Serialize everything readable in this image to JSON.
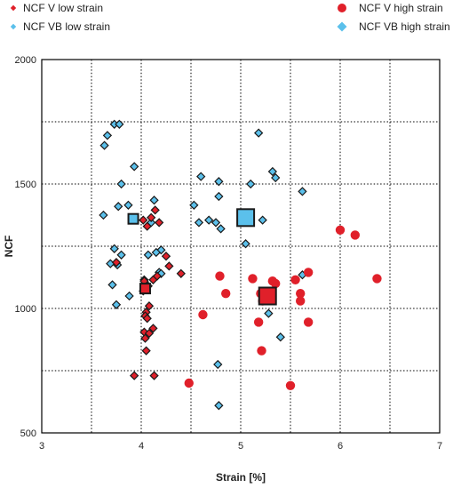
{
  "chart_data": {
    "type": "scatter",
    "xlabel": "Strain [%]",
    "ylabel": "NCF",
    "xlim": [
      3,
      7
    ],
    "ylim": [
      500,
      2000
    ],
    "xticks": [
      3,
      4,
      5,
      6,
      7
    ],
    "yticks": [
      500,
      1000,
      1500,
      2000
    ],
    "grid": "dotted",
    "legend_position": "top",
    "series": [
      {
        "name": "NCF V low strain",
        "color": "#e0202a",
        "marker": "diamond",
        "points": [
          [
            4.02,
            1355
          ],
          [
            4.06,
            1330
          ],
          [
            4.1,
            1365
          ],
          [
            4.14,
            1395
          ],
          [
            4.18,
            1345
          ],
          [
            4.03,
            1110
          ],
          [
            4.07,
            1090
          ],
          [
            4.12,
            1115
          ],
          [
            4.16,
            1130
          ],
          [
            4.25,
            1210
          ],
          [
            4.28,
            1170
          ],
          [
            4.4,
            1140
          ],
          [
            4.02,
            1070
          ],
          [
            4.08,
            1010
          ],
          [
            4.05,
            985
          ],
          [
            4.04,
            970
          ],
          [
            4.06,
            960
          ],
          [
            4.03,
            905
          ],
          [
            4.08,
            900
          ],
          [
            4.12,
            920
          ],
          [
            4.04,
            880
          ],
          [
            4.05,
            830
          ],
          [
            3.93,
            730
          ],
          [
            4.13,
            730
          ],
          [
            3.75,
            1185
          ]
        ]
      },
      {
        "name": "NCF VB low strain",
        "color": "#5bc0eb",
        "marker": "diamond",
        "points": [
          [
            3.73,
            1740
          ],
          [
            3.78,
            1740
          ],
          [
            3.66,
            1695
          ],
          [
            3.63,
            1655
          ],
          [
            3.93,
            1570
          ],
          [
            3.8,
            1500
          ],
          [
            3.87,
            1415
          ],
          [
            3.77,
            1410
          ],
          [
            4.13,
            1435
          ],
          [
            3.62,
            1375
          ],
          [
            4.1,
            1345
          ],
          [
            3.73,
            1240
          ],
          [
            3.8,
            1215
          ],
          [
            3.69,
            1180
          ],
          [
            3.76,
            1175
          ],
          [
            4.2,
            1235
          ],
          [
            4.15,
            1225
          ],
          [
            4.07,
            1215
          ],
          [
            4.18,
            1145
          ],
          [
            4.2,
            1140
          ],
          [
            4.03,
            1115
          ],
          [
            3.71,
            1095
          ],
          [
            3.88,
            1050
          ],
          [
            3.75,
            1015
          ]
        ]
      },
      {
        "name": "NCF V high strain",
        "color": "#e0202a",
        "marker": "circle",
        "points": [
          [
            4.79,
            1130
          ],
          [
            4.85,
            1060
          ],
          [
            4.62,
            975
          ],
          [
            4.48,
            700
          ],
          [
            5.12,
            1120
          ],
          [
            5.2,
            1060
          ],
          [
            5.27,
            1060
          ],
          [
            5.22,
            1030
          ],
          [
            5.32,
            1110
          ],
          [
            5.35,
            1100
          ],
          [
            5.18,
            945
          ],
          [
            5.21,
            830
          ],
          [
            5.5,
            690
          ],
          [
            5.55,
            1115
          ],
          [
            5.68,
            1145
          ],
          [
            5.6,
            1060
          ],
          [
            5.6,
            1030
          ],
          [
            5.68,
            945
          ],
          [
            6.0,
            1315
          ],
          [
            6.15,
            1295
          ],
          [
            6.37,
            1120
          ]
        ]
      },
      {
        "name": "NCF VB high strain",
        "color": "#5bc0eb",
        "marker": "diamond",
        "points": [
          [
            4.6,
            1530
          ],
          [
            4.78,
            1510
          ],
          [
            4.78,
            1450
          ],
          [
            4.53,
            1415
          ],
          [
            4.68,
            1355
          ],
          [
            4.58,
            1345
          ],
          [
            4.75,
            1345
          ],
          [
            4.8,
            1320
          ],
          [
            5.1,
            1500
          ],
          [
            5.32,
            1550
          ],
          [
            5.35,
            1525
          ],
          [
            5.18,
            1705
          ],
          [
            5.62,
            1470
          ],
          [
            5.22,
            1355
          ],
          [
            5.28,
            980
          ],
          [
            5.4,
            885
          ],
          [
            4.77,
            775
          ],
          [
            4.78,
            610
          ],
          [
            5.05,
            1260
          ],
          [
            5.62,
            1135
          ]
        ]
      },
      {
        "name": "NCF V low strain (mean)",
        "color": "#e0202a",
        "marker": "square",
        "size": "large",
        "points": [
          [
            4.04,
            1080
          ]
        ]
      },
      {
        "name": "NCF VB low strain (mean)",
        "color": "#5bc0eb",
        "marker": "square",
        "size": "large",
        "points": [
          [
            3.92,
            1360
          ]
        ]
      },
      {
        "name": "NCF V high strain (mean)",
        "color": "#e0202a",
        "marker": "square",
        "size": "xlarge",
        "points": [
          [
            5.27,
            1050
          ]
        ]
      },
      {
        "name": "NCF VB high strain (mean)",
        "color": "#5bc0eb",
        "marker": "square",
        "size": "xlarge",
        "points": [
          [
            5.05,
            1365
          ]
        ]
      }
    ],
    "legend": [
      {
        "label": "NCF V low strain",
        "color": "#e0202a",
        "marker": "diamond"
      },
      {
        "label": "NCF VB low strain",
        "color": "#5bc0eb",
        "marker": "diamond"
      },
      {
        "label": "NCF V high strain",
        "color": "#e0202a",
        "marker": "circle"
      },
      {
        "label": "NCF VB high strain",
        "color": "#5bc0eb",
        "marker": "diamond"
      }
    ]
  }
}
